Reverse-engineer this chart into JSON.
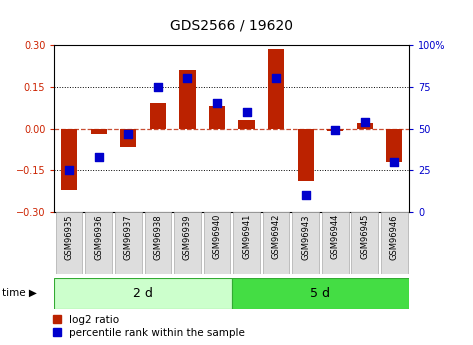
{
  "title": "GDS2566 / 19620",
  "categories": [
    "GSM96935",
    "GSM96936",
    "GSM96937",
    "GSM96938",
    "GSM96939",
    "GSM96940",
    "GSM96941",
    "GSM96942",
    "GSM96943",
    "GSM96944",
    "GSM96945",
    "GSM96946"
  ],
  "log2_ratio": [
    -0.22,
    -0.02,
    -0.065,
    0.09,
    0.21,
    0.08,
    0.03,
    0.285,
    -0.19,
    -0.01,
    0.02,
    -0.12
  ],
  "percentile_rank": [
    25,
    33,
    47,
    75,
    80,
    65,
    60,
    80,
    10,
    49,
    54,
    30
  ],
  "group1_count": 6,
  "group2_count": 6,
  "group1_label": "2 d",
  "group2_label": "5 d",
  "group_var": "time",
  "ylim": [
    -0.3,
    0.3
  ],
  "y2lim": [
    0,
    100
  ],
  "yticks": [
    -0.3,
    -0.15,
    0.0,
    0.15,
    0.3
  ],
  "y2ticks": [
    0,
    25,
    50,
    75,
    100
  ],
  "hlines": [
    0.15,
    0.0,
    -0.15
  ],
  "bar_color": "#bb2200",
  "dot_color": "#0000cc",
  "group1_bg": "#ccffcc",
  "group2_bg": "#44dd44",
  "group_edge": "#33aa33",
  "tick_label_color_left": "#cc2200",
  "tick_label_color_right": "#0000cc",
  "title_fontsize": 10,
  "axis_fontsize": 7,
  "legend_fontsize": 7.5,
  "xtick_fontsize": 6,
  "group_fontsize": 9
}
